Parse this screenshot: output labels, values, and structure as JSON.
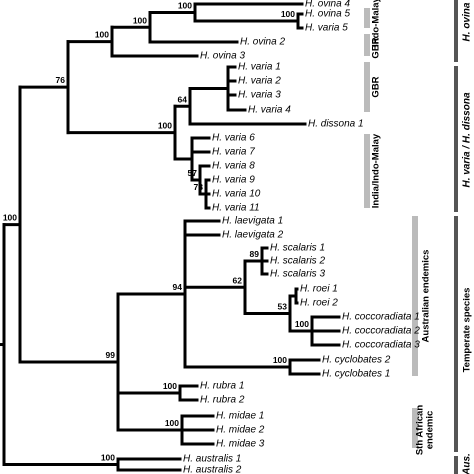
{
  "leaves": [
    "H. ovina 4",
    "H. ovina 5",
    "H. varia 5",
    "H. ovina 2",
    "H. ovina 3",
    "H. varia 1",
    "H. varia 2",
    "H. varia 3",
    "H. varia 4",
    "H. dissona 1",
    "H. varia 6",
    "H. varia 7",
    "H. varia 8",
    "H. varia 9",
    "H. varia 10",
    "H. varia 11",
    "H. laevigata 1",
    "H. laevigata 2",
    "H. scalaris 1",
    "H. scalaris 2",
    "H. scalaris 3",
    "H. roei 1",
    "H. roei 2",
    "H. coccoradiata 1",
    "H. coccoradiata 2",
    "H. coccoradiata 3",
    "H. cyclobates 2",
    "H. cyclobates 1",
    "H. rubra 1",
    "H. rubra 2",
    "H. midae 1",
    "H. midae 2",
    "H. midae 3",
    "H. australis 1",
    "H. australis 2"
  ],
  "bootstrap": [
    100,
    100,
    100,
    64,
    100,
    57,
    78,
    89,
    62,
    53,
    100,
    94,
    100,
    100,
    99,
    100,
    76,
    100,
    100,
    100
  ],
  "groups": [
    "Indo-Malay",
    "GBR",
    "GBR",
    "India/Indo-Malay",
    "Australian endemics",
    "Sth African",
    "endemic"
  ],
  "clades": [
    "H. ovina",
    "H. varia / H. dissona",
    "Temperate species",
    "Aus."
  ]
}
